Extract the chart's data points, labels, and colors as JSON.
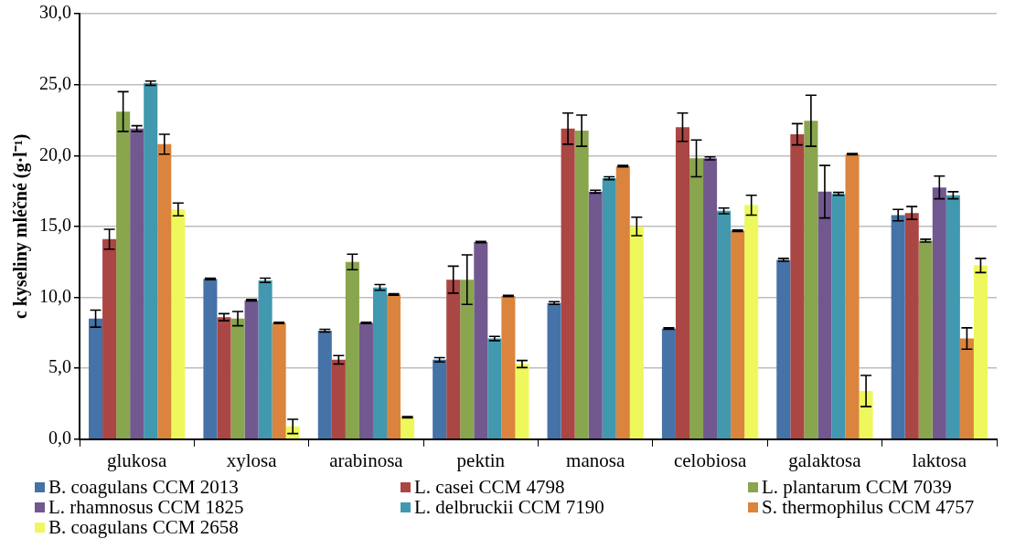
{
  "chart_data": {
    "type": "bar",
    "ylabel": "c kyseliny mléčné (g·l⁻¹)",
    "categories": [
      "glukosa",
      "xylosa",
      "arabinosa",
      "pektin",
      "manosa",
      "celobiosa",
      "galaktosa",
      "laktosa"
    ],
    "series": [
      {
        "name": "B. coagulans CCM 2013",
        "color": "#4572a7",
        "values": [
          8.5,
          11.3,
          7.65,
          5.6,
          9.6,
          7.8,
          12.65,
          15.8
        ],
        "errors": [
          0.6,
          0.05,
          0.1,
          0.15,
          0.1,
          0.05,
          0.1,
          0.4
        ]
      },
      {
        "name": "L. casei CCM 4798",
        "color": "#aa4643",
        "values": [
          14.1,
          8.6,
          5.6,
          11.25,
          21.9,
          22.0,
          21.5,
          15.95
        ],
        "errors": [
          0.7,
          0.25,
          0.3,
          0.95,
          1.1,
          1.0,
          0.75,
          0.45
        ]
      },
      {
        "name": "L. plantarum CCM 7039",
        "color": "#89a54e",
        "values": [
          23.1,
          8.5,
          12.5,
          11.25,
          21.75,
          19.8,
          22.45,
          14.0
        ],
        "errors": [
          1.4,
          0.5,
          0.55,
          1.75,
          1.1,
          1.3,
          1.8,
          0.1
        ]
      },
      {
        "name": "L. rhamnosus CCM 1825",
        "color": "#71588f",
        "values": [
          21.9,
          9.8,
          8.2,
          13.9,
          17.45,
          19.8,
          17.45,
          17.75
        ],
        "errors": [
          0.2,
          0.05,
          0.05,
          0.05,
          0.1,
          0.1,
          1.85,
          0.8
        ]
      },
      {
        "name": "L. delbruckii CCM 7190",
        "color": "#4198af",
        "values": [
          25.1,
          11.2,
          10.7,
          7.1,
          18.4,
          16.1,
          17.3,
          17.2
        ],
        "errors": [
          0.15,
          0.15,
          0.2,
          0.15,
          0.1,
          0.2,
          0.1,
          0.25
        ]
      },
      {
        "name": "S. thermophilus CCM 4757",
        "color": "#db843d",
        "values": [
          20.8,
          8.2,
          10.2,
          10.1,
          19.25,
          14.7,
          20.1,
          7.1
        ],
        "errors": [
          0.7,
          0.05,
          0.05,
          0.05,
          0.05,
          0.05,
          0.05,
          0.75
        ]
      },
      {
        "name": "B. coagulans CCM 2658",
        "color": "#eef85c",
        "values": [
          16.2,
          0.9,
          1.55,
          5.3,
          15.0,
          16.5,
          3.4,
          12.25
        ],
        "errors": [
          0.45,
          0.5,
          0.05,
          0.25,
          0.65,
          0.7,
          1.1,
          0.5
        ]
      }
    ],
    "ylim": [
      0,
      30
    ],
    "yticks": [
      {
        "value": 0,
        "label": "0,0"
      },
      {
        "value": 5,
        "label": "5,0"
      },
      {
        "value": 10,
        "label": "10,0"
      },
      {
        "value": 15,
        "label": "15,0"
      },
      {
        "value": 20,
        "label": "20,0"
      },
      {
        "value": 25,
        "label": "25,0"
      },
      {
        "value": 30,
        "label": "30,0"
      }
    ],
    "grid": "y",
    "legend": "bottom"
  }
}
